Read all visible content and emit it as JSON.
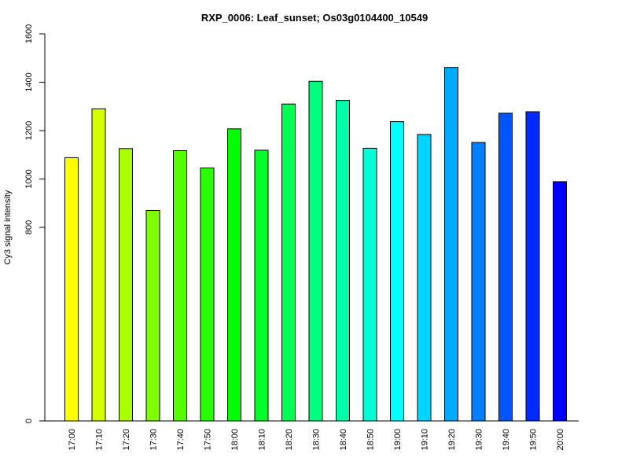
{
  "chart_data": {
    "type": "bar",
    "title": "RXP_0006: Leaf_sunset; Os03g0104400_10549",
    "xlabel": "",
    "ylabel": "Cy3 signal intensity",
    "ylim": [
      0,
      1600
    ],
    "yticks": [
      0,
      800,
      1000,
      1200,
      1400,
      1600
    ],
    "grid": false,
    "categories": [
      "17:00",
      "17:10",
      "17:20",
      "17:30",
      "17:40",
      "17:50",
      "18:00",
      "18:10",
      "18:20",
      "18:30",
      "18:40",
      "18:50",
      "19:00",
      "19:10",
      "19:20",
      "19:30",
      "19:40",
      "19:50",
      "20:00"
    ],
    "values": [
      1088,
      1290,
      1126,
      870,
      1117,
      1046,
      1207,
      1119,
      1310,
      1404,
      1325,
      1127,
      1237,
      1184,
      1461,
      1151,
      1272,
      1278,
      989
    ],
    "colors": [
      "#FFFF00",
      "#D4FF00",
      "#AAFF00",
      "#7FFF00",
      "#55FF00",
      "#2AFF00",
      "#00FF00",
      "#00FF2A",
      "#00FF55",
      "#00FF7F",
      "#00FFAA",
      "#00FFD4",
      "#00FFFF",
      "#00D4FF",
      "#00AAFF",
      "#007FFF",
      "#0055FF",
      "#002AFF",
      "#0000FF"
    ]
  }
}
